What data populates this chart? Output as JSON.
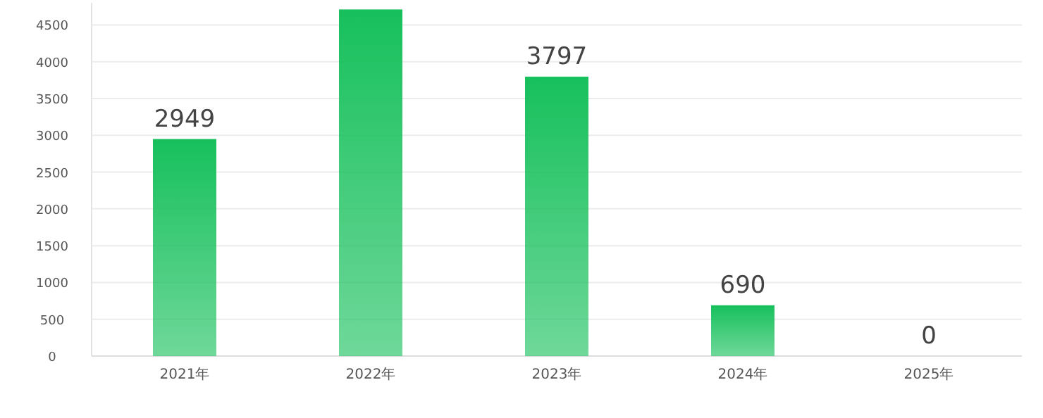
{
  "chart_data": {
    "type": "bar",
    "categories": [
      "2021年",
      "2022年",
      "2023年",
      "2024年",
      "2025年"
    ],
    "values": [
      2949,
      4710,
      3797,
      690,
      0
    ],
    "value_labels": [
      "2949",
      null,
      "3797",
      "690",
      "0"
    ],
    "color": "#17c05c",
    "ylim": [
      0,
      4800
    ],
    "yticks": [
      0,
      500,
      1000,
      1500,
      2000,
      2500,
      3000,
      3500,
      4000,
      4500
    ],
    "grid": "y"
  }
}
